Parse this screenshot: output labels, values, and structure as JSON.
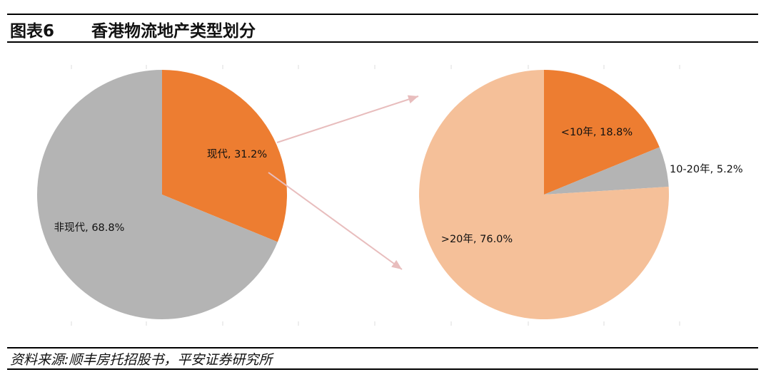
{
  "header": {
    "figure_label": "图表6",
    "title": "香港物流地产类型划分"
  },
  "source": "资料来源:顺丰房托招股书，平安证券研究所",
  "colors": {
    "orange": "#ED7D31",
    "gray": "#B4B4B4",
    "light_orange": "#F5C099",
    "arrow": "#E8BDBD"
  },
  "chart_data": [
    {
      "type": "pie",
      "title": "",
      "slices": [
        {
          "label": "现代",
          "value": 31.2,
          "display": "现代, 31.2%",
          "color": "#ED7D31"
        },
        {
          "label": "非现代",
          "value": 68.8,
          "display": "非现代, 68.8%",
          "color": "#B4B4B4"
        }
      ]
    },
    {
      "type": "pie",
      "title": "",
      "slices": [
        {
          "label": "<10年",
          "value": 18.8,
          "display": "<10年, 18.8%",
          "color": "#ED7D31"
        },
        {
          "label": "10-20年",
          "value": 5.2,
          "display": "10-20年, 5.2%",
          "color": "#B4B4B4"
        },
        {
          "label": ">20年",
          "value": 76.0,
          "display": ">20年, 76.0%",
          "color": "#F5C099"
        }
      ]
    }
  ]
}
